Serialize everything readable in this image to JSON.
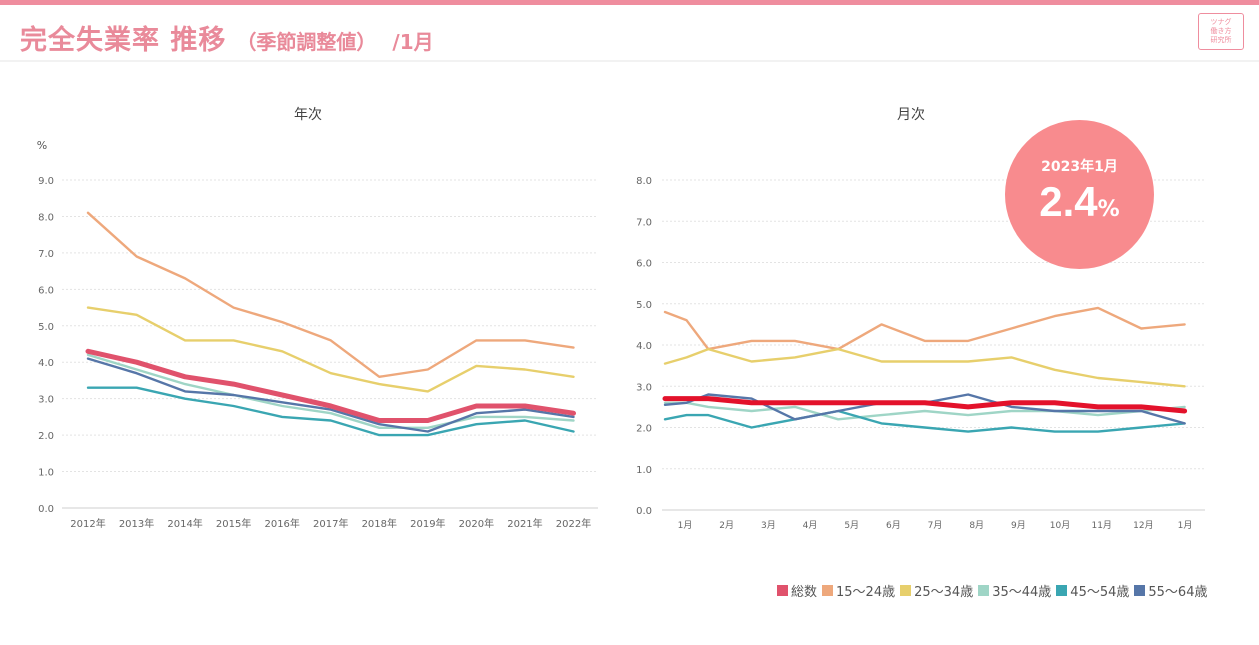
{
  "header": {
    "title": "完全失業率 推移",
    "subtitle": "（季節調整値）",
    "month": "/1月",
    "logo_lines": [
      "ツナグ",
      "働き方",
      "研究所"
    ]
  },
  "colors": {
    "accent": "#ef8d9e",
    "total": "#e0526c",
    "total_monthly": "#e3122b",
    "15-24": "#eea87c",
    "25-34": "#e7cf6c",
    "35-44": "#9fd5c6",
    "45-54": "#3aa6b2",
    "55-64": "#5676a8"
  },
  "highlight": {
    "label": "2023年1月",
    "value": "2.4",
    "unit": "%"
  },
  "legend": [
    {
      "key": "total",
      "label": "総数"
    },
    {
      "key": "15-24",
      "label": "15～24歳"
    },
    {
      "key": "25-34",
      "label": "25～34歳"
    },
    {
      "key": "35-44",
      "label": "35～44歳"
    },
    {
      "key": "45-54",
      "label": "45～54歳"
    },
    {
      "key": "55-64",
      "label": "55～64歳"
    }
  ],
  "chart_data": [
    {
      "type": "line",
      "title": "年次",
      "ylabel": "%",
      "ylim": [
        0,
        9
      ],
      "yticks": [
        "0.0",
        "1.0",
        "2.0",
        "3.0",
        "4.0",
        "5.0",
        "6.0",
        "7.0",
        "8.0",
        "9.0"
      ],
      "grid": true,
      "categories": [
        "2012年",
        "2013年",
        "2014年",
        "2015年",
        "2016年",
        "2017年",
        "2018年",
        "2019年",
        "2020年",
        "2021年",
        "2022年"
      ],
      "series": [
        {
          "key": "15-24",
          "name": "15～24歳",
          "values": [
            8.1,
            6.9,
            6.3,
            5.5,
            5.1,
            4.6,
            3.6,
            3.8,
            4.6,
            4.6,
            4.4
          ]
        },
        {
          "key": "25-34",
          "name": "25～34歳",
          "values": [
            5.5,
            5.3,
            4.6,
            4.6,
            4.3,
            3.7,
            3.4,
            3.2,
            3.9,
            3.8,
            3.6
          ]
        },
        {
          "key": "35-44",
          "name": "35～44歳",
          "values": [
            4.2,
            3.8,
            3.4,
            3.1,
            2.8,
            2.6,
            2.2,
            2.2,
            2.5,
            2.5,
            2.4
          ]
        },
        {
          "key": "55-64",
          "name": "55～64歳",
          "values": [
            4.1,
            3.7,
            3.2,
            3.1,
            2.9,
            2.7,
            2.3,
            2.1,
            2.6,
            2.7,
            2.5
          ]
        },
        {
          "key": "45-54",
          "name": "45～54歳",
          "values": [
            3.3,
            3.3,
            3.0,
            2.8,
            2.5,
            2.4,
            2.0,
            2.0,
            2.3,
            2.4,
            2.1
          ]
        },
        {
          "key": "total",
          "name": "総数",
          "values": [
            4.3,
            4.0,
            3.6,
            3.4,
            3.1,
            2.8,
            2.4,
            2.4,
            2.8,
            2.8,
            2.6
          ]
        }
      ]
    },
    {
      "type": "line",
      "title": "月次",
      "ylim": [
        0,
        8
      ],
      "yticks": [
        "0.0",
        "1.0",
        "2.0",
        "3.0",
        "4.0",
        "5.0",
        "6.0",
        "7.0",
        "8.0"
      ],
      "grid": true,
      "x": [
        0,
        0.5,
        1,
        2,
        3,
        4,
        5,
        6,
        7,
        8,
        9,
        10,
        11,
        12
      ],
      "categories": [
        "1月",
        "2月",
        "3月",
        "4月",
        "5月",
        "6月",
        "7月",
        "8月",
        "9月",
        "10月",
        "11月",
        "12月",
        "1月"
      ],
      "series": [
        {
          "key": "15-24",
          "name": "15～24歳",
          "values": [
            4.8,
            4.6,
            3.9,
            4.1,
            4.1,
            3.9,
            4.5,
            4.1,
            4.1,
            4.4,
            4.7,
            4.9,
            4.4,
            4.5
          ]
        },
        {
          "key": "25-34",
          "name": "25～34歳",
          "values": [
            3.55,
            3.7,
            3.9,
            3.6,
            3.7,
            3.9,
            3.6,
            3.6,
            3.6,
            3.7,
            3.4,
            3.2,
            3.1,
            3.0
          ]
        },
        {
          "key": "35-44",
          "name": "35～44歳",
          "values": [
            2.6,
            2.6,
            2.5,
            2.4,
            2.5,
            2.2,
            2.3,
            2.4,
            2.3,
            2.4,
            2.4,
            2.3,
            2.4,
            2.5
          ]
        },
        {
          "key": "45-54",
          "name": "45～54歳",
          "values": [
            2.2,
            2.3,
            2.3,
            2.0,
            2.2,
            2.4,
            2.1,
            2.0,
            1.9,
            2.0,
            1.9,
            1.9,
            2.0,
            2.1
          ]
        },
        {
          "key": "55-64",
          "name": "55～64歳",
          "values": [
            2.55,
            2.6,
            2.8,
            2.7,
            2.2,
            2.4,
            2.6,
            2.6,
            2.8,
            2.5,
            2.4,
            2.4,
            2.4,
            2.1
          ]
        },
        {
          "key": "total_monthly",
          "name": "総数",
          "values": [
            2.7,
            2.7,
            2.7,
            2.6,
            2.6,
            2.6,
            2.6,
            2.6,
            2.5,
            2.6,
            2.6,
            2.5,
            2.5,
            2.4
          ]
        }
      ]
    }
  ]
}
